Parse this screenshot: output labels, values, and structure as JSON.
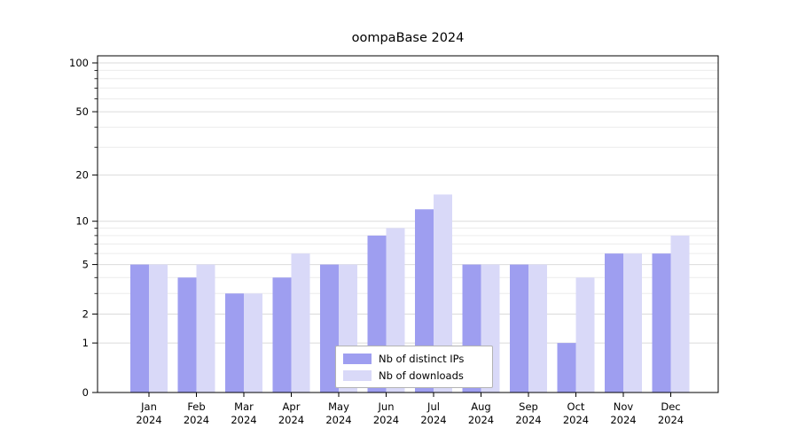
{
  "chart_data": {
    "type": "bar",
    "title": "oompaBase 2024",
    "categories": [
      "Jan 2024",
      "Feb 2024",
      "Mar 2024",
      "Apr 2024",
      "May 2024",
      "Jun 2024",
      "Jul 2024",
      "Aug 2024",
      "Sep 2024",
      "Oct 2024",
      "Nov 2024",
      "Dec 2024"
    ],
    "series": [
      {
        "key": "distinct-ips",
        "name": "Nb of distinct IPs",
        "color": "#9e9ef0",
        "values": [
          5,
          4,
          3,
          4,
          5,
          8,
          12,
          5,
          5,
          1,
          6,
          6
        ]
      },
      {
        "key": "downloads",
        "name": "Nb of downloads",
        "color": "#d9d9f8",
        "values": [
          5,
          5,
          3,
          6,
          5,
          9,
          15,
          5,
          5,
          4,
          6,
          8
        ]
      }
    ],
    "xlabel": "",
    "ylabel": "",
    "ylim": [
      0,
      100
    ],
    "yscale": "log-like",
    "y_ticks": [
      0,
      1,
      2,
      5,
      10,
      20,
      50,
      100
    ],
    "y_minor_ticks": [
      3,
      4,
      6,
      7,
      8,
      9,
      30,
      40,
      60,
      70,
      80,
      90
    ],
    "grid": "horizontal",
    "legend_position": "bottom-center"
  }
}
